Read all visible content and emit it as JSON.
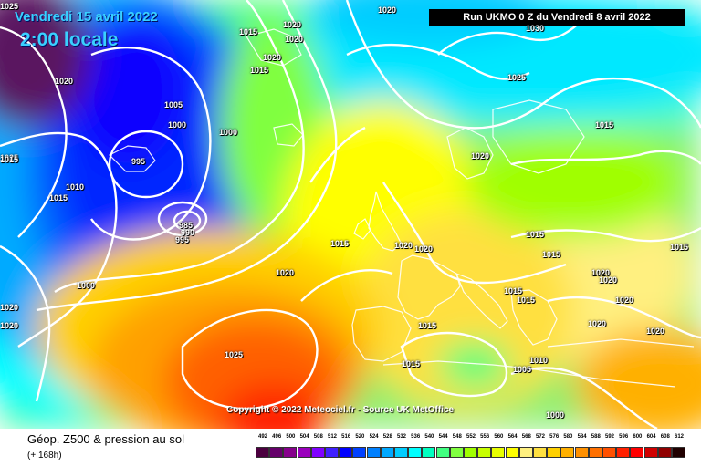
{
  "header": {
    "date": "Vendredi 15 avril 2022",
    "time": "2:00 locale"
  },
  "run_info": "Run UKMO 0 Z du Vendredi 8 avril 2022",
  "copyright": "Copyright © 2022 Meteociel.fr - Source UK MetOffice",
  "footer": {
    "title": "Géop. Z500 & pression au sol",
    "subtitle": "(+ 168h)"
  },
  "scale": {
    "labels": [
      "492",
      "496",
      "500",
      "504",
      "508",
      "512",
      "516",
      "520",
      "524",
      "528",
      "532",
      "536",
      "540",
      "544",
      "548",
      "552",
      "556",
      "560",
      "564",
      "568",
      "572",
      "576",
      "580",
      "584",
      "588",
      "592",
      "596",
      "600",
      "604",
      "608",
      "612"
    ],
    "colors": [
      "#4b003f",
      "#65006a",
      "#86008c",
      "#9a00bd",
      "#8000ff",
      "#4020ff",
      "#0000ff",
      "#0040ff",
      "#0080ff",
      "#00a8ff",
      "#00ccff",
      "#00ffff",
      "#00ffc0",
      "#40ff80",
      "#80ff40",
      "#a0ff00",
      "#c8ff00",
      "#e8ff00",
      "#ffff00",
      "#fff080",
      "#ffe040",
      "#ffd000",
      "#ffb000",
      "#ff9000",
      "#ff7000",
      "#ff5000",
      "#ff2000",
      "#ff0000",
      "#d00000",
      "#900000",
      "#200000"
    ]
  },
  "pressure_labels": [
    {
      "text": "1020"
    },
    {
      "text": "1020"
    },
    {
      "text": "1020"
    },
    {
      "text": "1015"
    },
    {
      "text": "1020"
    },
    {
      "text": "1025"
    },
    {
      "text": "1015"
    },
    {
      "text": "1005"
    },
    {
      "text": "1000"
    },
    {
      "text": "1000"
    },
    {
      "text": "1020"
    },
    {
      "text": "1025"
    },
    {
      "text": "1010"
    },
    {
      "text": "995"
    },
    {
      "text": "1015"
    },
    {
      "text": "985"
    },
    {
      "text": "990"
    },
    {
      "text": "995"
    },
    {
      "text": "1030"
    },
    {
      "text": "1025"
    },
    {
      "text": "1015"
    },
    {
      "text": "1020"
    },
    {
      "text": "1015"
    },
    {
      "text": "1020"
    },
    {
      "text": "1020"
    },
    {
      "text": "1015"
    },
    {
      "text": "1015"
    },
    {
      "text": "1020"
    },
    {
      "text": "1015"
    },
    {
      "text": "1000"
    },
    {
      "text": "1020"
    },
    {
      "text": "1020"
    },
    {
      "text": "1015"
    },
    {
      "text": "1015"
    },
    {
      "text": "1020"
    },
    {
      "text": "1020"
    },
    {
      "text": "1020"
    },
    {
      "text": "1020"
    },
    {
      "text": "1015"
    },
    {
      "text": "1025"
    },
    {
      "text": "1015"
    },
    {
      "text": "1005"
    },
    {
      "text": "1010"
    },
    {
      "text": "1000"
    },
    {
      "text": "1020"
    },
    {
      "text": "1015"
    }
  ]
}
